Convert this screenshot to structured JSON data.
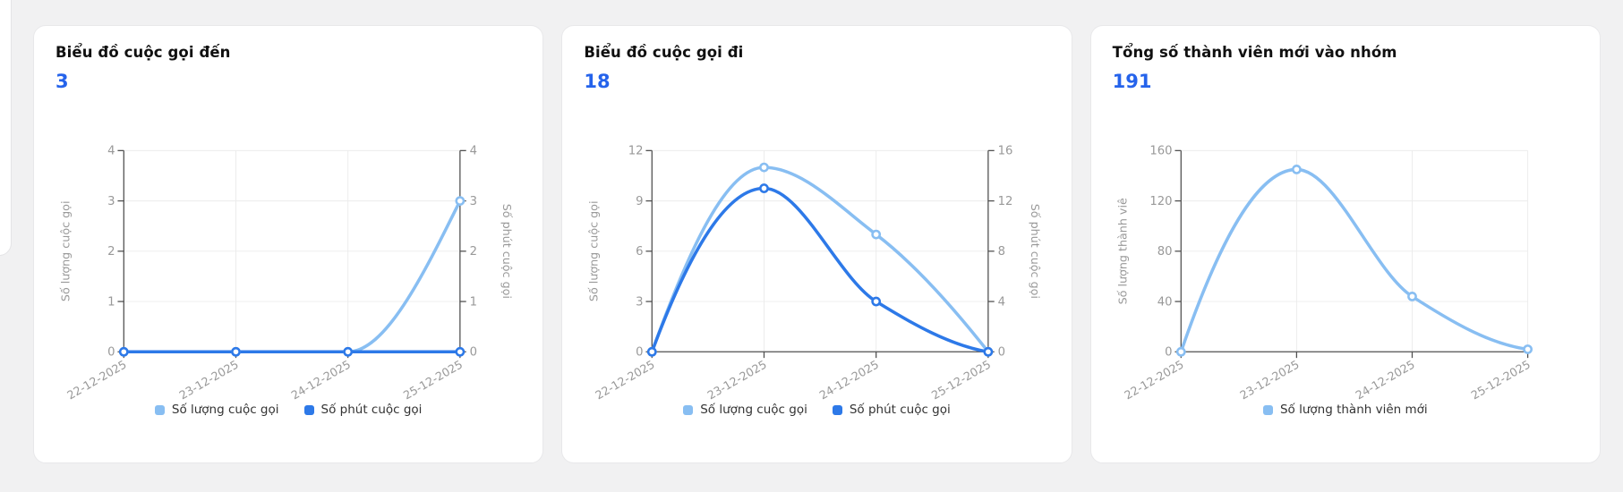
{
  "colors": {
    "light_blue": "#88BEF2",
    "dark_blue": "#2D79E8",
    "value_blue": "#2563EB",
    "title_text": "#101010",
    "axis_label": "#999999",
    "axis_line": "#4F4F4F",
    "grid_line": "#ECECEC",
    "legend_text": "#333333",
    "page_bg": "#F1F1F2",
    "card_bg": "#FFFFFF",
    "card_border": "#E8E8EA"
  },
  "cards": [
    {
      "title": "Biểu đồ cuộc gọi đến",
      "value": "3",
      "legend": [
        {
          "label": "Số lượng cuộc gọi",
          "color": "light_blue"
        },
        {
          "label": "Số phút cuộc gọi",
          "color": "dark_blue"
        }
      ]
    },
    {
      "title": "Biểu đồ cuộc gọi đi",
      "value": "18",
      "legend": [
        {
          "label": "Số lượng cuộc gọi",
          "color": "light_blue"
        },
        {
          "label": "Số phút cuộc gọi",
          "color": "dark_blue"
        }
      ]
    },
    {
      "title": "Tổng số thành viên mới vào nhóm",
      "value": "191",
      "legend": [
        {
          "label": "Số lượng thành viên mới",
          "color": "light_blue"
        }
      ]
    }
  ],
  "chart_data": [
    {
      "type": "line",
      "title": "Biểu đồ cuộc gọi đến",
      "categories": [
        "22-12-2025",
        "23-12-2025",
        "24-12-2025",
        "25-12-2025"
      ],
      "series": [
        {
          "name": "Số lượng cuộc gọi",
          "axis": "left",
          "color": "light_blue",
          "values": [
            0,
            0,
            0,
            3
          ]
        },
        {
          "name": "Số phút cuộc gọi",
          "axis": "right",
          "color": "dark_blue",
          "values": [
            0,
            0,
            0,
            0
          ]
        }
      ],
      "left_axis": {
        "label": "Số lượng cuộc gọi",
        "min": 0,
        "max": 4,
        "ticks": [
          0,
          1,
          2,
          3,
          4
        ]
      },
      "right_axis": {
        "label": "Số phút cuộc gọi",
        "min": 0,
        "max": 4,
        "ticks": [
          0,
          1,
          2,
          3,
          4
        ]
      },
      "smooth": true,
      "grid": true,
      "legend_position": "bottom"
    },
    {
      "type": "line",
      "title": "Biểu đồ cuộc gọi đi",
      "categories": [
        "22-12-2025",
        "23-12-2025",
        "24-12-2025",
        "25-12-2025"
      ],
      "series": [
        {
          "name": "Số lượng cuộc gọi",
          "axis": "left",
          "color": "light_blue",
          "values": [
            0,
            11,
            7,
            0
          ]
        },
        {
          "name": "Số phút cuộc gọi",
          "axis": "right",
          "color": "dark_blue",
          "values": [
            0,
            13,
            4,
            0
          ]
        }
      ],
      "left_axis": {
        "label": "Số lượng cuộc gọi",
        "min": 0,
        "max": 12,
        "ticks": [
          0,
          3,
          6,
          9,
          12
        ]
      },
      "right_axis": {
        "label": "Số phút cuộc gọi",
        "min": 0,
        "max": 16,
        "ticks": [
          0,
          4,
          8,
          12,
          16
        ]
      },
      "smooth": true,
      "grid": true,
      "legend_position": "bottom"
    },
    {
      "type": "line",
      "title": "Tổng số thành viên mới vào nhóm",
      "categories": [
        "22-12-2025",
        "23-12-2025",
        "24-12-2025",
        "25-12-2025"
      ],
      "series": [
        {
          "name": "Số lượng thành viên mới",
          "axis": "left",
          "color": "light_blue",
          "values": [
            0,
            145,
            44,
            2
          ]
        }
      ],
      "left_axis": {
        "label": "Số lượng thành viê",
        "min": 0,
        "max": 160,
        "ticks": [
          0,
          40,
          80,
          120,
          160
        ]
      },
      "right_axis": null,
      "smooth": true,
      "grid": true,
      "legend_position": "bottom"
    }
  ]
}
